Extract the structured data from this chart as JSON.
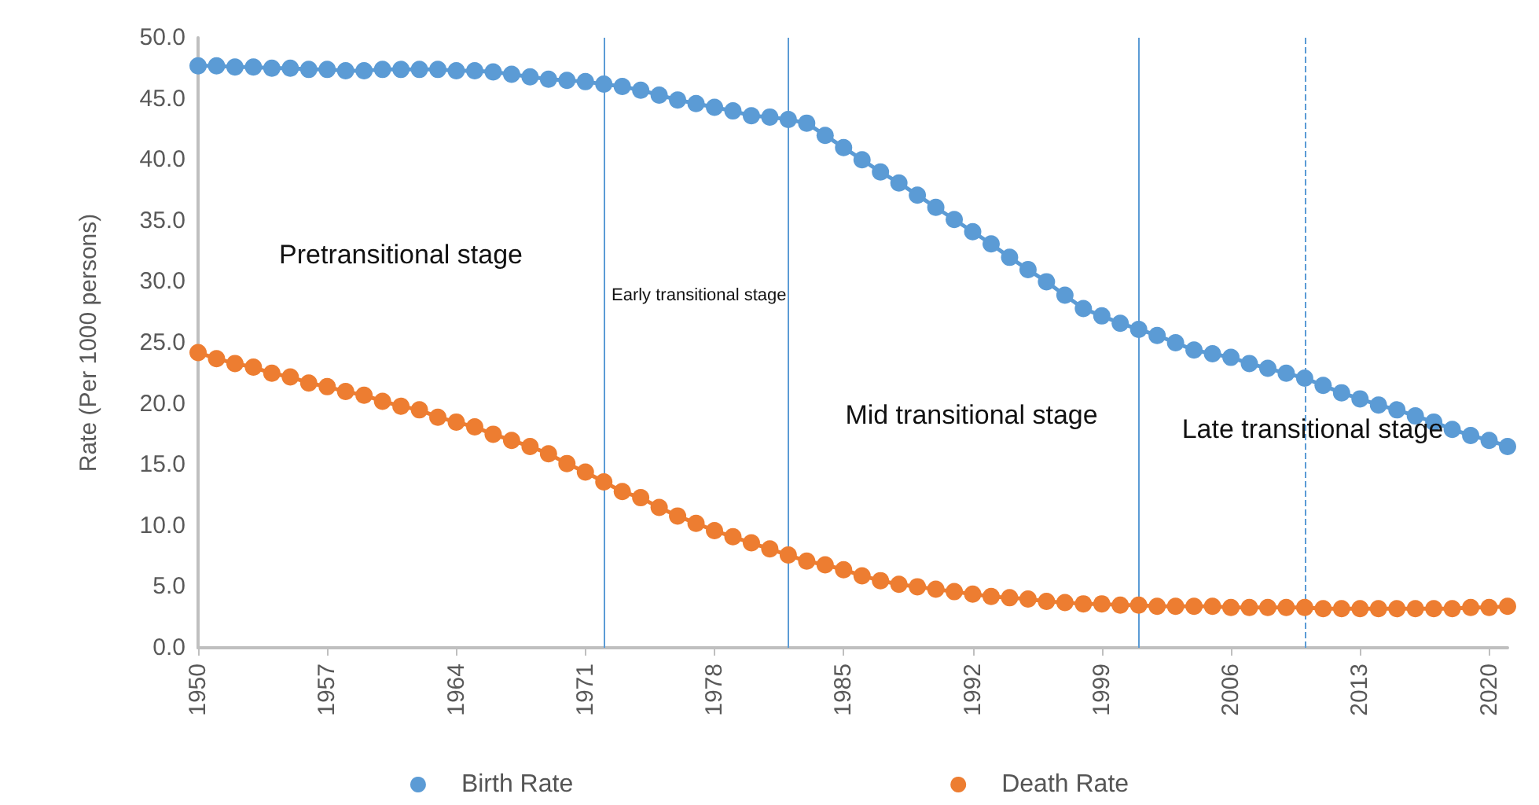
{
  "chart_data": {
    "type": "line",
    "ylabel": "Rate (Per 1000 persons)",
    "x": [
      1950,
      1951,
      1952,
      1953,
      1954,
      1955,
      1956,
      1957,
      1958,
      1959,
      1960,
      1961,
      1962,
      1963,
      1964,
      1965,
      1966,
      1967,
      1968,
      1969,
      1970,
      1971,
      1972,
      1973,
      1974,
      1975,
      1976,
      1977,
      1978,
      1979,
      1980,
      1981,
      1982,
      1983,
      1984,
      1985,
      1986,
      1987,
      1988,
      1989,
      1990,
      1991,
      1992,
      1993,
      1994,
      1995,
      1996,
      1997,
      1998,
      1999,
      2000,
      2001,
      2002,
      2003,
      2004,
      2005,
      2006,
      2007,
      2008,
      2009,
      2010,
      2011,
      2012,
      2013,
      2014,
      2015,
      2016,
      2017,
      2018,
      2019,
      2020,
      2021
    ],
    "series": [
      {
        "name": "Birth Rate",
        "color": "#5b9bd5",
        "values": [
          47.7,
          47.7,
          47.6,
          47.6,
          47.5,
          47.5,
          47.4,
          47.4,
          47.3,
          47.3,
          47.4,
          47.4,
          47.4,
          47.4,
          47.3,
          47.3,
          47.2,
          47.0,
          46.8,
          46.6,
          46.5,
          46.4,
          46.2,
          46.0,
          45.7,
          45.3,
          44.9,
          44.6,
          44.3,
          44.0,
          43.6,
          43.5,
          43.3,
          43.0,
          42.0,
          41.0,
          40.0,
          39.0,
          38.1,
          37.1,
          36.1,
          35.1,
          34.1,
          33.1,
          32.0,
          31.0,
          30.0,
          28.9,
          27.8,
          27.2,
          26.6,
          26.1,
          25.6,
          25.0,
          24.4,
          24.1,
          23.8,
          23.3,
          22.9,
          22.5,
          22.1,
          21.5,
          20.9,
          20.4,
          19.9,
          19.5,
          19.0,
          18.5,
          17.9,
          17.4,
          17.0,
          16.5
        ]
      },
      {
        "name": "Death Rate",
        "color": "#ed7d31",
        "values": [
          24.2,
          23.7,
          23.3,
          23.0,
          22.5,
          22.2,
          21.7,
          21.4,
          21.0,
          20.7,
          20.2,
          19.8,
          19.5,
          18.9,
          18.5,
          18.1,
          17.5,
          17.0,
          16.5,
          15.9,
          15.1,
          14.4,
          13.6,
          12.8,
          12.3,
          11.5,
          10.8,
          10.2,
          9.6,
          9.1,
          8.6,
          8.1,
          7.6,
          7.1,
          6.8,
          6.4,
          5.9,
          5.5,
          5.2,
          5.0,
          4.8,
          4.6,
          4.4,
          4.2,
          4.1,
          4.0,
          3.8,
          3.7,
          3.6,
          3.6,
          3.5,
          3.5,
          3.4,
          3.4,
          3.4,
          3.4,
          3.3,
          3.3,
          3.3,
          3.3,
          3.3,
          3.2,
          3.2,
          3.2,
          3.2,
          3.2,
          3.2,
          3.2,
          3.2,
          3.3,
          3.3,
          3.4
        ]
      }
    ],
    "xlim": [
      1950,
      2021
    ],
    "xticks": [
      1950,
      1957,
      1964,
      1971,
      1978,
      1985,
      1992,
      1999,
      2006,
      2013,
      2020
    ],
    "ylim": [
      0,
      50
    ],
    "yticks": [
      {
        "value": 0,
        "label": "0.0"
      },
      {
        "value": 5,
        "label": "5.0"
      },
      {
        "value": 10,
        "label": "10.0"
      },
      {
        "value": 15,
        "label": "15.0"
      },
      {
        "value": 20,
        "label": "20.0"
      },
      {
        "value": 25,
        "label": "25.0"
      },
      {
        "value": 30,
        "label": "30.0"
      },
      {
        "value": 35,
        "label": "35.0"
      },
      {
        "value": 40,
        "label": "40.0"
      },
      {
        "value": 45,
        "label": "45.0"
      },
      {
        "value": 50,
        "label": "50.0"
      }
    ],
    "ref_lines": [
      {
        "axis": "x",
        "value": 1972,
        "color": "#5b9bd5"
      },
      {
        "axis": "x",
        "value": 1982,
        "color": "#5b9bd5"
      },
      {
        "axis": "x",
        "value": 2001,
        "color": "#5b9bd5"
      },
      {
        "axis": "x",
        "value": 2010,
        "color": "#5b9bd5",
        "line_style": "dashed"
      }
    ],
    "annotations": [
      "Pretransitional stage",
      "Early transitional stage",
      "Mid transitional stage",
      "Late transitional stage"
    ],
    "grid": false,
    "legend": "bottom",
    "marker": "circle",
    "line_style": "solid"
  }
}
